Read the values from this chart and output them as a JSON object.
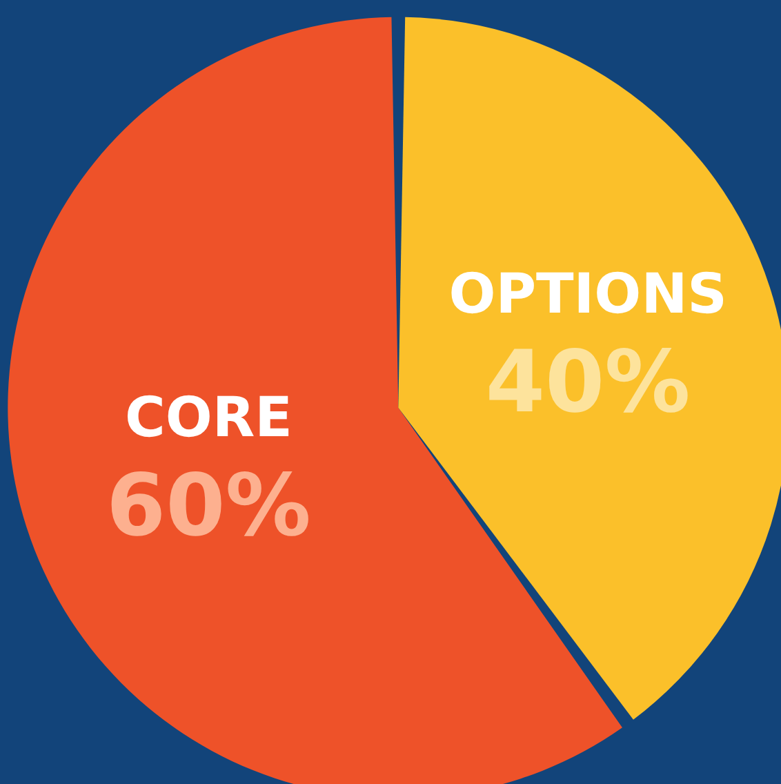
{
  "chart_data": {
    "type": "pie",
    "categories": [
      "CORE",
      "OPTIONS"
    ],
    "values": [
      60,
      40
    ],
    "colors": [
      "#ee5229",
      "#fbc02a"
    ],
    "value_labels": [
      "60%",
      "40%"
    ],
    "legend": false
  }
}
